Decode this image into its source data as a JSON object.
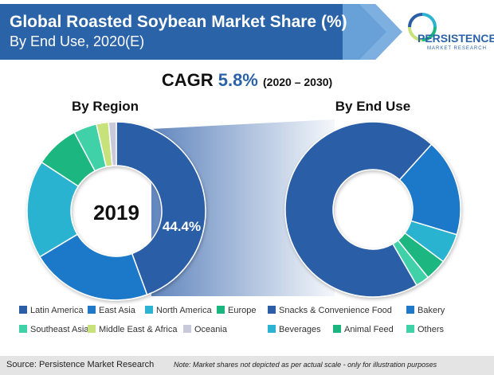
{
  "header": {
    "title": "Global Roasted Soybean Market Share (%)",
    "subtitle": "By End Use, 2020(E)"
  },
  "logo": {
    "name": "PERSISTENCE",
    "tagline": "MARKET RESEARCH"
  },
  "cagr": {
    "label": "CAGR",
    "value": "5.8%",
    "period": "(2020 – 2030)"
  },
  "footer": {
    "source": "Source: Persistence Market Research",
    "note": "Note: Market shares not depicted as per actual scale - only for illustration purposes"
  },
  "colors": {
    "header_band": "#2b63a8",
    "connector": "#7aa6d6"
  },
  "chart_data": [
    {
      "type": "pie",
      "title": "By Region",
      "center_label": "2019",
      "highlight_label": "44.4%",
      "series": [
        {
          "name": "Latin America",
          "value": 44.4,
          "color": "#2c5ea8"
        },
        {
          "name": "East Asia",
          "value": 22.0,
          "color": "#1f78c8"
        },
        {
          "name": "North America",
          "value": 17.8,
          "color": "#2bb3d1"
        },
        {
          "name": "Europe",
          "value": 8.0,
          "color": "#1bb680"
        },
        {
          "name": "Southeast Asia",
          "value": 4.2,
          "color": "#3fd1a8"
        },
        {
          "name": "Middle East & Africa",
          "value": 2.2,
          "color": "#c7e27a"
        },
        {
          "name": "Oceania",
          "value": 1.4,
          "color": "#c9c9dc"
        }
      ]
    },
    {
      "type": "pie",
      "title": "By End Use",
      "series": [
        {
          "name": "Snacks & Convenience Food",
          "value": 70.0,
          "color": "#2c5ea8"
        },
        {
          "name": "Bakery",
          "value": 18.0,
          "color": "#1f78c8"
        },
        {
          "name": "Beverages",
          "value": 5.5,
          "color": "#2bb3d1"
        },
        {
          "name": "Animal Feed",
          "value": 4.0,
          "color": "#1bb680"
        },
        {
          "name": "Others",
          "value": 2.5,
          "color": "#3fd1a8"
        }
      ]
    }
  ]
}
